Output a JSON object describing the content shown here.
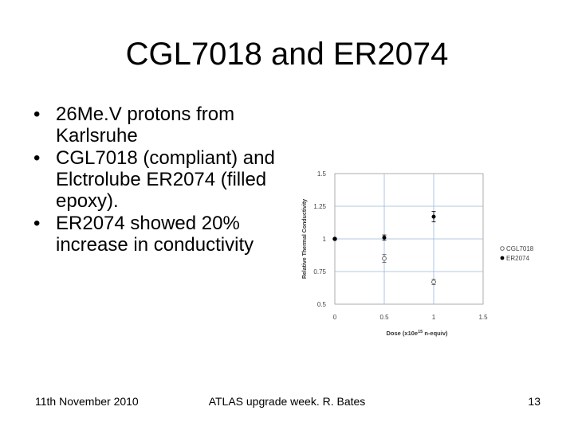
{
  "slide": {
    "title": "CGL7018 and ER2074",
    "bullets": [
      "26Me.V protons from Karlsruhe",
      "CGL7018 (compliant) and Elctrolube ER2074 (filled epoxy).",
      "ER2074 showed 20% increase in conductivity"
    ],
    "footer_left": "11th November 2010",
    "footer_center": "ATLAS upgrade week. R. Bates",
    "page_number": "13"
  },
  "chart_data": {
    "type": "scatter",
    "xlabel": "Dose (x10e",
    "xlabel_sup": "15",
    "xlabel_tail": " n-equiv)",
    "ylabel": "Relative Thermal Conductivity",
    "xlim": [
      0,
      1.5
    ],
    "ylim": [
      0.5,
      1.5
    ],
    "x_ticks": [
      "0",
      "0.5",
      "1",
      "1.5"
    ],
    "y_ticks": [
      "0.5",
      "0.75",
      "1",
      "1.25",
      "1.5"
    ],
    "grid": true,
    "legend_placement": "right",
    "series": [
      {
        "name": "CGL7018",
        "marker": "open-circle",
        "color": "#555555",
        "points": [
          {
            "x": 0,
            "y": 1.0,
            "err": 0
          },
          {
            "x": 0.5,
            "y": 0.85,
            "err": 0.03
          },
          {
            "x": 1,
            "y": 0.67,
            "err": 0.02
          }
        ]
      },
      {
        "name": "ER2074",
        "marker": "filled-circle",
        "color": "#000000",
        "points": [
          {
            "x": 0,
            "y": 1.0,
            "err": 0
          },
          {
            "x": 0.5,
            "y": 1.01,
            "err": 0.02
          },
          {
            "x": 1,
            "y": 1.17,
            "err": 0.04
          }
        ]
      }
    ]
  }
}
